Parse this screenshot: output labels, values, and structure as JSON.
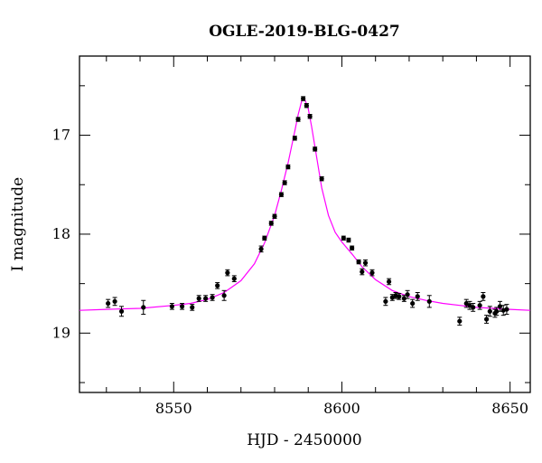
{
  "chart_data": {
    "type": "scatter",
    "title": "OGLE-2019-BLG-0427",
    "xlabel": "HJD - 2450000",
    "ylabel": "I magnitude",
    "xlim": [
      8522,
      8656
    ],
    "ylim": [
      19.6,
      16.2
    ],
    "y_inverted": true,
    "grid": false,
    "xticks": [
      8550,
      8600,
      8650
    ],
    "xtick_labels": [
      "8550",
      "8600",
      "8650"
    ],
    "yticks": [
      17,
      18,
      19
    ],
    "ytick_labels": [
      "17",
      "18",
      "19"
    ],
    "model_color": "#ff00ff",
    "point_color": "#000000",
    "series": [
      {
        "type": "scatter_errorbar",
        "x": [
          8530.5,
          8532.5,
          8534.5,
          8541.0,
          8549.5,
          8552.5,
          8555.5,
          8557.5,
          8559.5,
          8561.5,
          8563.0,
          8565.0,
          8566.0,
          8568.0,
          8576.0,
          8577.0,
          8579.0,
          8580.0,
          8582.0,
          8583.0,
          8584.0,
          8586.0,
          8587.0,
          8588.5,
          8589.5,
          8590.5,
          8592.0,
          8594.0,
          8600.5,
          8602.0,
          8603.0,
          8605.0,
          8606.0,
          8607.0,
          8609.0,
          8613.0,
          8614.0,
          8615.0,
          8616.0,
          8617.0,
          8618.5,
          8619.5,
          8621.0,
          8622.5,
          8626.0,
          8635.0,
          8637.0,
          8638.0,
          8639.0,
          8641.0,
          8642.0,
          8643.0,
          8644.0,
          8645.5,
          8646.0,
          8647.0,
          8648.0,
          8649.0
        ],
        "y": [
          18.7,
          18.68,
          18.78,
          18.74,
          18.73,
          18.73,
          18.74,
          18.65,
          18.65,
          18.64,
          18.52,
          18.62,
          18.39,
          18.45,
          18.15,
          18.04,
          17.89,
          17.82,
          17.6,
          17.48,
          17.32,
          17.03,
          16.84,
          16.63,
          16.7,
          16.81,
          17.14,
          17.44,
          18.04,
          18.06,
          18.14,
          18.28,
          18.38,
          18.29,
          18.39,
          18.68,
          18.48,
          18.64,
          18.62,
          18.63,
          18.65,
          18.61,
          18.7,
          18.63,
          18.68,
          18.88,
          18.7,
          18.72,
          18.74,
          18.72,
          18.63,
          18.86,
          18.78,
          18.8,
          18.78,
          18.73,
          18.77,
          18.76
        ],
        "yerr": [
          0.04,
          0.04,
          0.05,
          0.07,
          0.03,
          0.03,
          0.03,
          0.03,
          0.03,
          0.03,
          0.03,
          0.05,
          0.03,
          0.03,
          0.03,
          0.02,
          0.02,
          0.02,
          0.02,
          0.02,
          0.02,
          0.02,
          0.02,
          0.02,
          0.02,
          0.02,
          0.02,
          0.02,
          0.02,
          0.02,
          0.02,
          0.02,
          0.03,
          0.03,
          0.03,
          0.04,
          0.03,
          0.03,
          0.03,
          0.03,
          0.03,
          0.04,
          0.04,
          0.04,
          0.06,
          0.04,
          0.04,
          0.04,
          0.04,
          0.04,
          0.04,
          0.04,
          0.05,
          0.04,
          0.04,
          0.05,
          0.05,
          0.05
        ]
      },
      {
        "type": "model_line",
        "x": [
          8522,
          8530,
          8540,
          8550,
          8555,
          8560,
          8565,
          8570,
          8574,
          8577,
          8580,
          8582,
          8584,
          8586,
          8587,
          8588,
          8588.5,
          8589,
          8590,
          8591,
          8592,
          8594,
          8596,
          8598,
          8600,
          8603,
          8606,
          8610,
          8615,
          8620,
          8625,
          8630,
          8635,
          8640,
          8645,
          8650,
          8656
        ],
        "y": [
          18.77,
          18.76,
          18.75,
          18.72,
          18.7,
          18.66,
          18.59,
          18.47,
          18.3,
          18.09,
          17.81,
          17.56,
          17.28,
          16.96,
          16.79,
          16.66,
          16.63,
          16.64,
          16.73,
          16.91,
          17.12,
          17.53,
          17.81,
          17.98,
          18.08,
          18.2,
          18.33,
          18.46,
          18.57,
          18.63,
          18.67,
          18.7,
          18.72,
          18.74,
          18.75,
          18.76,
          18.77
        ]
      }
    ]
  }
}
